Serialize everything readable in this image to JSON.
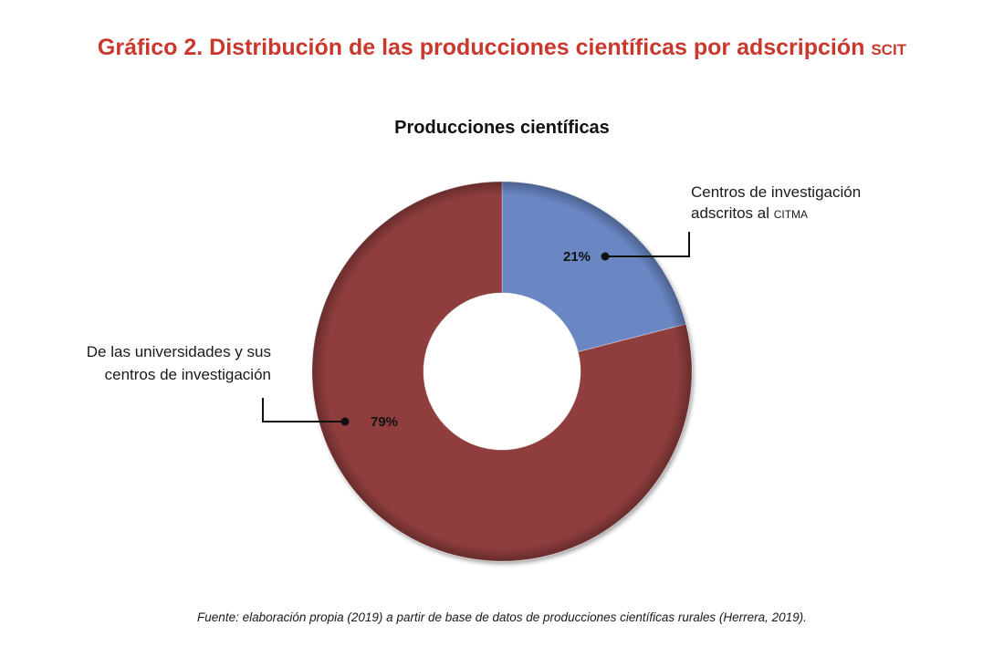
{
  "figure": {
    "title_main": "Gráfico 2. Distribución de las producciones científicas por adscripción ",
    "title_abbr": "scit",
    "source": "Fuente: elaboración propia (2019) a partir de base de datos de producciones científicas rurales (Herrera, 2019)."
  },
  "chart_data": {
    "type": "pie",
    "style": "donut",
    "title": "Producciones científicas",
    "legend": "none",
    "slices": [
      {
        "label": "Centros de investigación adscritos al CITMA",
        "label_lines": [
          "Centros de investigación",
          "adscritos al "
        ],
        "label_abbr": "citma",
        "value": 21,
        "value_label": "21%",
        "color": "#6b86c3"
      },
      {
        "label": "De las universidades y sus centros de investigación",
        "label_lines": [
          "De las universidades y sus",
          "centros de investigación"
        ],
        "value": 79,
        "value_label": "79%",
        "color": "#8f3e3c"
      }
    ]
  }
}
